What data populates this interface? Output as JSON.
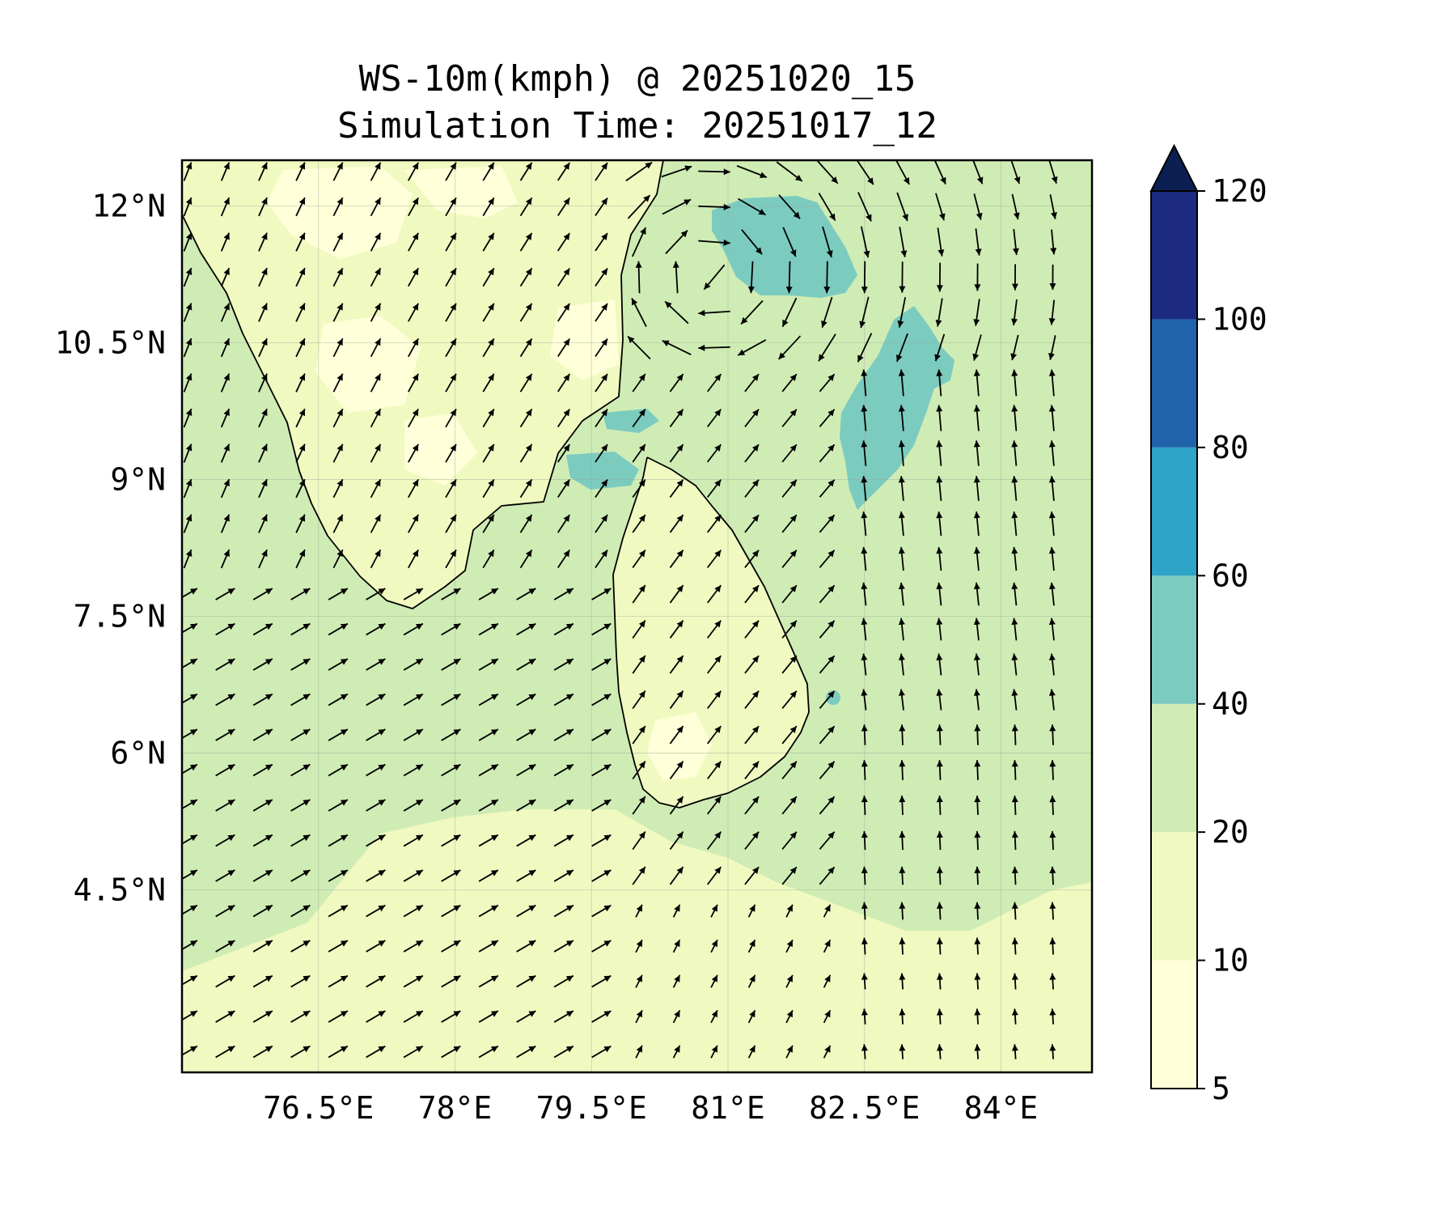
{
  "title": "WS-10m(kmph) @ 20251020_15",
  "subtitle": "Simulation Time: 20251017_12",
  "map": {
    "variable": "WS-10m(kmph)",
    "lon_range": [
      75.0,
      85.0
    ],
    "lat_range": [
      2.5,
      12.5
    ],
    "x_ticks": [
      {
        "value": 76.5,
        "label": "76.5°E"
      },
      {
        "value": 78.0,
        "label": "78°E"
      },
      {
        "value": 79.5,
        "label": "79.5°E"
      },
      {
        "value": 81.0,
        "label": "81°E"
      },
      {
        "value": 82.5,
        "label": "82.5°E"
      },
      {
        "value": 84.0,
        "label": "84°E"
      }
    ],
    "y_ticks": [
      {
        "value": 12.0,
        "label": "12°N"
      },
      {
        "value": 10.5,
        "label": "10.5°N"
      },
      {
        "value": 9.0,
        "label": "9°N"
      },
      {
        "value": 7.5,
        "label": "7.5°N"
      },
      {
        "value": 6.0,
        "label": "6°N"
      },
      {
        "value": 4.5,
        "label": "4.5°N"
      }
    ],
    "grid": true
  },
  "colorbar": {
    "extend": "max",
    "levels": [
      {
        "value": 5,
        "label": "5"
      },
      {
        "value": 10,
        "label": "10"
      },
      {
        "value": 20,
        "label": "20"
      },
      {
        "value": 40,
        "label": "40"
      },
      {
        "value": 60,
        "label": "60"
      },
      {
        "value": 80,
        "label": "80"
      },
      {
        "value": 100,
        "label": "100"
      },
      {
        "value": 120,
        "label": "120"
      }
    ],
    "colors": [
      "#ffffd9",
      "#f0f9c0",
      "#cfecb4",
      "#7ccbbf",
      "#2ea4c8",
      "#2163aa",
      "#1c2b80",
      "#0b1f52"
    ]
  },
  "colors": {
    "land": "#f0f9c0",
    "sea": "#cfecb4",
    "calm": "#ffffd9",
    "strong": "#7ccbbf",
    "coast": "#000000",
    "arrow": "#000000"
  }
}
